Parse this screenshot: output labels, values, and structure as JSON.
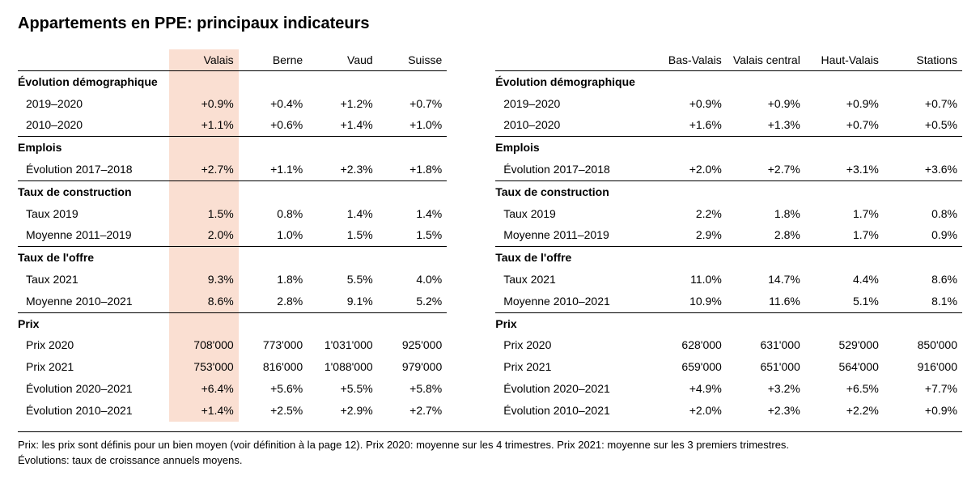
{
  "title": "Appartements en PPE: principaux indicateurs",
  "footnote_line1": "Prix: les prix sont définis pour un bien moyen (voir définition à la page 12). Prix 2020: moyenne sur les 4 trimestres. Prix 2021: moyenne sur les 3 premiers trimestres.",
  "footnote_line2": "Évolutions: taux de croissance annuels moyens.",
  "highlight_color": "#fadfd2",
  "left_table": {
    "columns": [
      "",
      "Valais",
      "Berne",
      "Vaud",
      "Suisse"
    ],
    "highlight_col_index": 1,
    "rows": [
      {
        "type": "section",
        "label": "Évolution démographique"
      },
      {
        "type": "data",
        "label": "2019–2020",
        "cells": [
          "+0.9%",
          "+0.4%",
          "+1.2%",
          "+0.7%"
        ]
      },
      {
        "type": "data",
        "label": "2010–2020",
        "cells": [
          "+1.1%",
          "+0.6%",
          "+1.4%",
          "+1.0%"
        ],
        "rule": true
      },
      {
        "type": "section",
        "label": "Emplois"
      },
      {
        "type": "data",
        "label": "Évolution 2017–2018",
        "cells": [
          "+2.7%",
          "+1.1%",
          "+2.3%",
          "+1.8%"
        ],
        "rule": true
      },
      {
        "type": "section",
        "label": "Taux de construction"
      },
      {
        "type": "data",
        "label": "Taux 2019",
        "cells": [
          "1.5%",
          "0.8%",
          "1.4%",
          "1.4%"
        ]
      },
      {
        "type": "data",
        "label": "Moyenne 2011–2019",
        "cells": [
          "2.0%",
          "1.0%",
          "1.5%",
          "1.5%"
        ],
        "rule": true
      },
      {
        "type": "section",
        "label": "Taux de l'offre"
      },
      {
        "type": "data",
        "label": "Taux 2021",
        "cells": [
          "9.3%",
          "1.8%",
          "5.5%",
          "4.0%"
        ]
      },
      {
        "type": "data",
        "label": "Moyenne 2010–2021",
        "cells": [
          "8.6%",
          "2.8%",
          "9.1%",
          "5.2%"
        ],
        "rule": true
      },
      {
        "type": "section",
        "label": "Prix"
      },
      {
        "type": "data",
        "label": "Prix 2020",
        "cells": [
          "708'000",
          "773'000",
          "1'031'000",
          "925'000"
        ]
      },
      {
        "type": "data",
        "label": "Prix 2021",
        "cells": [
          "753'000",
          "816'000",
          "1'088'000",
          "979'000"
        ]
      },
      {
        "type": "data",
        "label": "Évolution 2020–2021",
        "cells": [
          "+6.4%",
          "+5.6%",
          "+5.5%",
          "+5.8%"
        ]
      },
      {
        "type": "data",
        "label": "Évolution 2010–2021",
        "cells": [
          "+1.4%",
          "+2.5%",
          "+2.9%",
          "+2.7%"
        ]
      }
    ]
  },
  "right_table": {
    "columns": [
      "",
      "Bas-Valais",
      "Valais central",
      "Haut-Valais",
      "Stations"
    ],
    "highlight_col_index": -1,
    "rows": [
      {
        "type": "section",
        "label": "Évolution démographique"
      },
      {
        "type": "data",
        "label": "2019–2020",
        "cells": [
          "+0.9%",
          "+0.9%",
          "+0.9%",
          "+0.7%"
        ]
      },
      {
        "type": "data",
        "label": "2010–2020",
        "cells": [
          "+1.6%",
          "+1.3%",
          "+0.7%",
          "+0.5%"
        ],
        "rule": true
      },
      {
        "type": "section",
        "label": "Emplois"
      },
      {
        "type": "data",
        "label": "Évolution 2017–2018",
        "cells": [
          "+2.0%",
          "+2.7%",
          "+3.1%",
          "+3.6%"
        ],
        "rule": true
      },
      {
        "type": "section",
        "label": "Taux de construction"
      },
      {
        "type": "data",
        "label": "Taux 2019",
        "cells": [
          "2.2%",
          "1.8%",
          "1.7%",
          "0.8%"
        ]
      },
      {
        "type": "data",
        "label": "Moyenne 2011–2019",
        "cells": [
          "2.9%",
          "2.8%",
          "1.7%",
          "0.9%"
        ],
        "rule": true
      },
      {
        "type": "section",
        "label": "Taux de l'offre"
      },
      {
        "type": "data",
        "label": "Taux 2021",
        "cells": [
          "11.0%",
          "14.7%",
          "4.4%",
          "8.6%"
        ]
      },
      {
        "type": "data",
        "label": "Moyenne 2010–2021",
        "cells": [
          "10.9%",
          "11.6%",
          "5.1%",
          "8.1%"
        ],
        "rule": true
      },
      {
        "type": "section",
        "label": "Prix"
      },
      {
        "type": "data",
        "label": "Prix 2020",
        "cells": [
          "628'000",
          "631'000",
          "529'000",
          "850'000"
        ]
      },
      {
        "type": "data",
        "label": "Prix 2021",
        "cells": [
          "659'000",
          "651'000",
          "564'000",
          "916'000"
        ]
      },
      {
        "type": "data",
        "label": "Évolution 2020–2021",
        "cells": [
          "+4.9%",
          "+3.2%",
          "+6.5%",
          "+7.7%"
        ]
      },
      {
        "type": "data",
        "label": "Évolution 2010–2021",
        "cells": [
          "+2.0%",
          "+2.3%",
          "+2.2%",
          "+0.9%"
        ]
      }
    ]
  }
}
